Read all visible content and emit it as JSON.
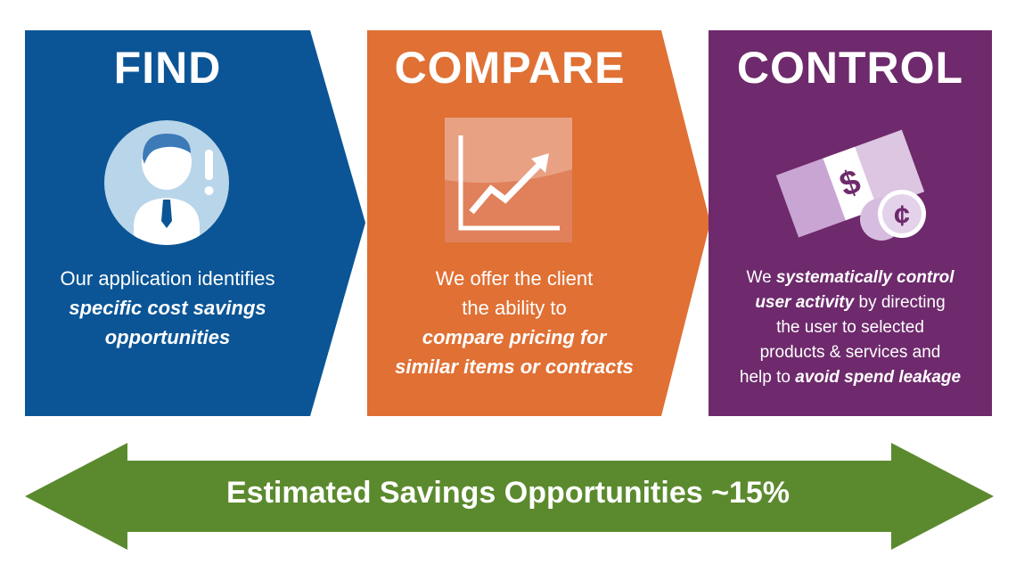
{
  "colors": {
    "find": "#0b5596",
    "compare": "#e07034",
    "control": "#6e2a6c",
    "savings": "#5b8a2e"
  },
  "panels": {
    "find": {
      "title": "FIND",
      "icon": "person-alert-icon",
      "text": {
        "line1": "Our application identifies",
        "em1": "specific cost savings",
        "em2": "opportunities"
      }
    },
    "compare": {
      "title": "COMPARE",
      "icon": "rising-chart-icon",
      "text": {
        "line1": "We offer the client",
        "line2": "the ability to",
        "em1": "compare pricing for",
        "em2": "similar items or contracts"
      }
    },
    "control": {
      "title": "CONTROL",
      "icon": "money-coins-icon",
      "text": {
        "pre1": "We ",
        "em1": "systematically control",
        "em2": "user activity",
        "post2": " by directing",
        "line3": "the user to selected",
        "line4": "products & services and",
        "pre5": "help to ",
        "em5": "avoid spend leakage"
      }
    }
  },
  "savings": {
    "label": "Estimated Savings Opportunities ~15%",
    "icon": "double-arrow-icon"
  }
}
